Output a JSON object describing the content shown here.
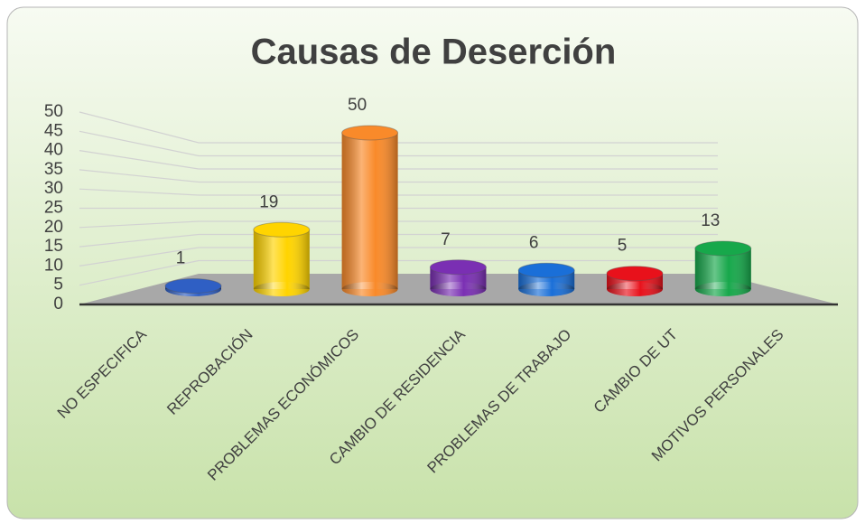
{
  "chart_data": {
    "type": "bar",
    "title": "Causas de Deserción",
    "categories": [
      "NO ESPECIFICA",
      "REPROBACIÓN",
      "PROBLEMAS ECONÓMICOS",
      "CAMBIO DE RESIDENCIA",
      "PROBLEMAS DE TRABAJO",
      "CAMBIO DE UT",
      "MOTIVOS PERSONALES"
    ],
    "values": [
      1,
      19,
      50,
      7,
      6,
      5,
      13
    ],
    "colors": [
      "#2f5fc4",
      "#ffd400",
      "#f98a2a",
      "#7a2fb3",
      "#1a6fd8",
      "#e8111b",
      "#17a84b"
    ],
    "ylim": [
      0,
      50
    ],
    "yticks": [
      0,
      5,
      10,
      15,
      20,
      25,
      30,
      35,
      40,
      45,
      50
    ],
    "grid": true
  }
}
